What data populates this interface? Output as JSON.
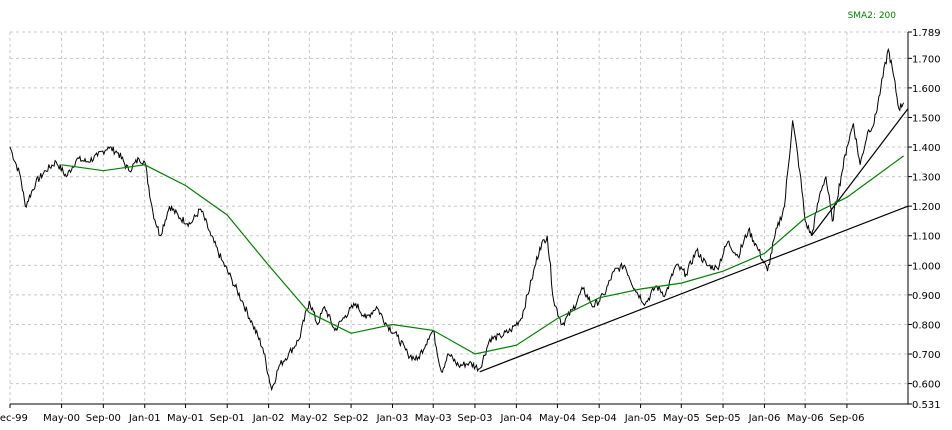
{
  "chart_data": {
    "type": "line",
    "title": "",
    "xlabel": "",
    "ylabel": "",
    "grid": true,
    "legend": {
      "position": "top-right",
      "label": "SMA2: 200",
      "color": "#008000"
    },
    "colors": {
      "price": "#000000",
      "sma": "#008000",
      "trendline": "#000000",
      "grid": "#c8c8c8"
    },
    "ylim": [
      0.531,
      1.789
    ],
    "y_ticks": [
      "1.789",
      "1.700",
      "1.600",
      "1.500",
      "1.400",
      "1.300",
      "1.200",
      "1.100",
      "1.000",
      "0.900",
      "0.800",
      "0.700",
      "0.600",
      "0.531"
    ],
    "x_start": "1999-12-01",
    "x_end": "2007-02-28",
    "x_ticks": [
      {
        "date": "1999-12-01",
        "label": "Dec-99"
      },
      {
        "date": "2000-05-01",
        "label": "May-00"
      },
      {
        "date": "2000-09-01",
        "label": "Sep-00"
      },
      {
        "date": "2001-01-01",
        "label": "Jan-01"
      },
      {
        "date": "2001-05-01",
        "label": "May-01"
      },
      {
        "date": "2001-09-01",
        "label": "Sep-01"
      },
      {
        "date": "2002-01-01",
        "label": "Jan-02"
      },
      {
        "date": "2002-05-01",
        "label": "May-02"
      },
      {
        "date": "2002-09-01",
        "label": "Sep-02"
      },
      {
        "date": "2003-01-01",
        "label": "Jan-03"
      },
      {
        "date": "2003-05-01",
        "label": "May-03"
      },
      {
        "date": "2003-09-01",
        "label": "Sep-03"
      },
      {
        "date": "2004-01-01",
        "label": "Jan-04"
      },
      {
        "date": "2004-05-01",
        "label": "May-04"
      },
      {
        "date": "2004-09-01",
        "label": "Sep-04"
      },
      {
        "date": "2005-01-01",
        "label": "Jan-05"
      },
      {
        "date": "2005-05-01",
        "label": "May-05"
      },
      {
        "date": "2005-09-01",
        "label": "Sep-05"
      },
      {
        "date": "2006-01-01",
        "label": "Jan-06"
      },
      {
        "date": "2006-05-01",
        "label": "May-06"
      },
      {
        "date": "2006-09-01",
        "label": "Sep-06"
      }
    ],
    "series": [
      {
        "values": [
          [
            "1999-12-01",
            1.4
          ],
          [
            "2000-01-01",
            1.3
          ],
          [
            "2000-01-15",
            1.2
          ],
          [
            "2000-02-15",
            1.28
          ],
          [
            "2000-03-15",
            1.32
          ],
          [
            "2000-04-15",
            1.35
          ],
          [
            "2000-05-15",
            1.3
          ],
          [
            "2000-06-15",
            1.36
          ],
          [
            "2000-07-15",
            1.35
          ],
          [
            "2000-08-15",
            1.37
          ],
          [
            "2000-09-15",
            1.4
          ],
          [
            "2000-10-15",
            1.38
          ],
          [
            "2000-11-15",
            1.32
          ],
          [
            "2000-12-15",
            1.36
          ],
          [
            "2001-01-01",
            1.35
          ],
          [
            "2001-01-25",
            1.18
          ],
          [
            "2001-02-15",
            1.1
          ],
          [
            "2001-03-15",
            1.2
          ],
          [
            "2001-04-15",
            1.16
          ],
          [
            "2001-05-15",
            1.14
          ],
          [
            "2001-06-15",
            1.19
          ],
          [
            "2001-07-15",
            1.1
          ],
          [
            "2001-08-15",
            1.02
          ],
          [
            "2001-09-15",
            0.95
          ],
          [
            "2001-10-15",
            0.88
          ],
          [
            "2001-11-15",
            0.8
          ],
          [
            "2001-12-15",
            0.72
          ],
          [
            "2002-01-10",
            0.58
          ],
          [
            "2002-02-01",
            0.66
          ],
          [
            "2002-03-01",
            0.7
          ],
          [
            "2002-04-01",
            0.75
          ],
          [
            "2002-05-01",
            0.88
          ],
          [
            "2002-05-25",
            0.8
          ],
          [
            "2002-06-15",
            0.86
          ],
          [
            "2002-07-15",
            0.78
          ],
          [
            "2002-08-15",
            0.83
          ],
          [
            "2002-09-15",
            0.87
          ],
          [
            "2002-10-15",
            0.82
          ],
          [
            "2002-11-15",
            0.86
          ],
          [
            "2002-12-15",
            0.8
          ],
          [
            "2003-01-15",
            0.76
          ],
          [
            "2003-02-15",
            0.7
          ],
          [
            "2003-03-15",
            0.68
          ],
          [
            "2003-04-15",
            0.75
          ],
          [
            "2003-05-01",
            0.78
          ],
          [
            "2003-05-25",
            0.64
          ],
          [
            "2003-06-15",
            0.7
          ],
          [
            "2003-07-15",
            0.66
          ],
          [
            "2003-08-15",
            0.67
          ],
          [
            "2003-09-15",
            0.65
          ],
          [
            "2003-10-15",
            0.75
          ],
          [
            "2003-11-15",
            0.76
          ],
          [
            "2003-12-15",
            0.78
          ],
          [
            "2004-01-15",
            0.82
          ],
          [
            "2004-02-15",
            0.95
          ],
          [
            "2004-03-10",
            1.06
          ],
          [
            "2004-04-01",
            1.1
          ],
          [
            "2004-04-20",
            0.88
          ],
          [
            "2004-05-15",
            0.8
          ],
          [
            "2004-06-15",
            0.85
          ],
          [
            "2004-07-15",
            0.92
          ],
          [
            "2004-08-15",
            0.86
          ],
          [
            "2004-09-15",
            0.9
          ],
          [
            "2004-10-15",
            0.98
          ],
          [
            "2004-11-15",
            1.0
          ],
          [
            "2004-12-15",
            0.92
          ],
          [
            "2005-01-15",
            0.87
          ],
          [
            "2005-02-15",
            0.93
          ],
          [
            "2005-03-15",
            0.9
          ],
          [
            "2005-04-15",
            1.0
          ],
          [
            "2005-05-15",
            0.97
          ],
          [
            "2005-06-15",
            1.05
          ],
          [
            "2005-07-15",
            1.0
          ],
          [
            "2005-08-15",
            0.99
          ],
          [
            "2005-09-15",
            1.08
          ],
          [
            "2005-10-15",
            1.03
          ],
          [
            "2005-11-15",
            1.12
          ],
          [
            "2005-12-15",
            1.05
          ],
          [
            "2006-01-10",
            0.98
          ],
          [
            "2006-02-01",
            1.1
          ],
          [
            "2006-03-01",
            1.2
          ],
          [
            "2006-03-25",
            1.49
          ],
          [
            "2006-04-15",
            1.32
          ],
          [
            "2006-05-01",
            1.15
          ],
          [
            "2006-05-20",
            1.1
          ],
          [
            "2006-06-15",
            1.25
          ],
          [
            "2006-07-01",
            1.3
          ],
          [
            "2006-07-20",
            1.15
          ],
          [
            "2006-08-15",
            1.3
          ],
          [
            "2006-09-01",
            1.4
          ],
          [
            "2006-09-20",
            1.48
          ],
          [
            "2006-10-10",
            1.34
          ],
          [
            "2006-11-01",
            1.45
          ],
          [
            "2006-11-20",
            1.48
          ],
          [
            "2006-12-10",
            1.6
          ],
          [
            "2007-01-01",
            1.73
          ],
          [
            "2007-01-15",
            1.65
          ],
          [
            "2007-02-01",
            1.53
          ],
          [
            "2007-02-15",
            1.55
          ]
        ]
      },
      {
        "name": "SMA2: 200",
        "values": [
          [
            "2000-05-01",
            1.34
          ],
          [
            "2000-09-01",
            1.32
          ],
          [
            "2001-01-01",
            1.34
          ],
          [
            "2001-05-01",
            1.27
          ],
          [
            "2001-09-01",
            1.17
          ],
          [
            "2002-01-01",
            1.0
          ],
          [
            "2002-05-01",
            0.84
          ],
          [
            "2002-09-01",
            0.77
          ],
          [
            "2003-01-01",
            0.8
          ],
          [
            "2003-05-01",
            0.78
          ],
          [
            "2003-09-01",
            0.7
          ],
          [
            "2004-01-01",
            0.73
          ],
          [
            "2004-05-01",
            0.82
          ],
          [
            "2004-09-01",
            0.89
          ],
          [
            "2005-01-01",
            0.92
          ],
          [
            "2005-05-01",
            0.94
          ],
          [
            "2005-09-01",
            0.98
          ],
          [
            "2006-01-01",
            1.04
          ],
          [
            "2006-05-01",
            1.16
          ],
          [
            "2006-09-01",
            1.23
          ],
          [
            "2007-02-15",
            1.37
          ]
        ]
      }
    ],
    "trendlines": [
      {
        "from": [
          "2003-09-15",
          0.64
        ],
        "to": [
          "2007-02-28",
          1.2
        ]
      },
      {
        "from": [
          "2006-05-20",
          1.1
        ],
        "to": [
          "2007-02-28",
          1.53
        ]
      }
    ]
  }
}
